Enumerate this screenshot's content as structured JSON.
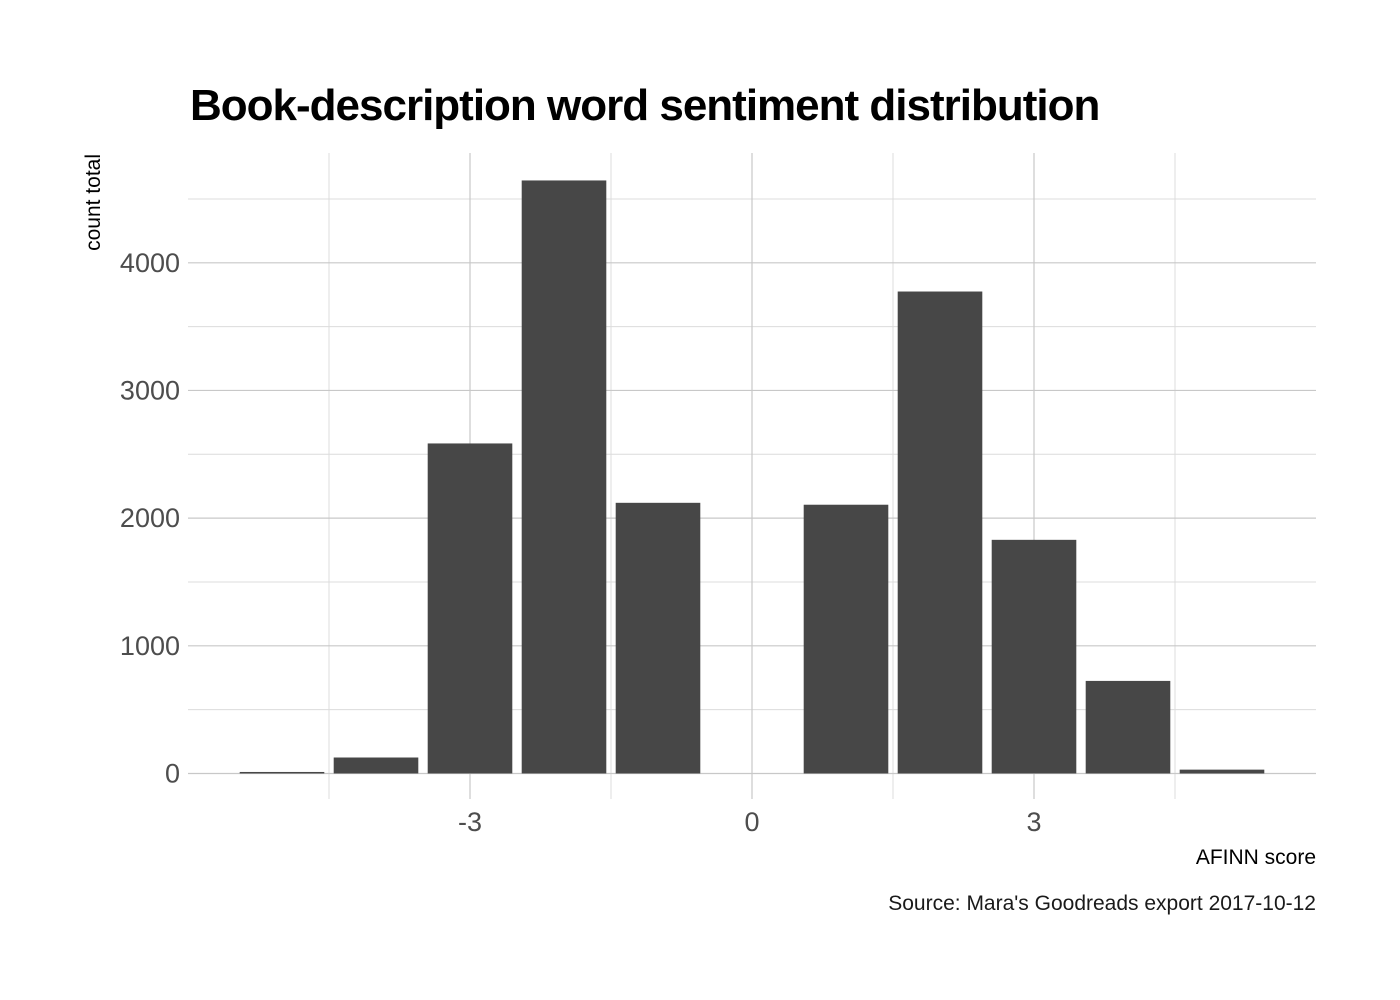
{
  "chart_data": {
    "type": "bar",
    "title": "Book-description word sentiment distribution",
    "xlabel": "AFINN score",
    "ylabel": "count total",
    "caption": "Source: Mara's Goodreads export 2017-10-12",
    "x": [
      -5,
      -4,
      -3,
      -2,
      -1,
      0,
      1,
      2,
      3,
      4,
      5
    ],
    "values": [
      5,
      125,
      2585,
      4645,
      2120,
      0,
      2105,
      3775,
      1830,
      725,
      30
    ],
    "xlim": [
      -6,
      6
    ],
    "ylim": [
      -200,
      4860
    ],
    "x_ticks": [
      -3,
      0,
      3
    ],
    "x_tick_labels": [
      "-3",
      "0",
      "3"
    ],
    "y_ticks": [
      0,
      1000,
      2000,
      3000,
      4000
    ],
    "y_tick_labels": [
      "0",
      "1000",
      "2000",
      "3000",
      "4000"
    ],
    "grid": true,
    "legend": "none",
    "bar_color": "#474747",
    "grid_color": "#c8c8c8"
  }
}
